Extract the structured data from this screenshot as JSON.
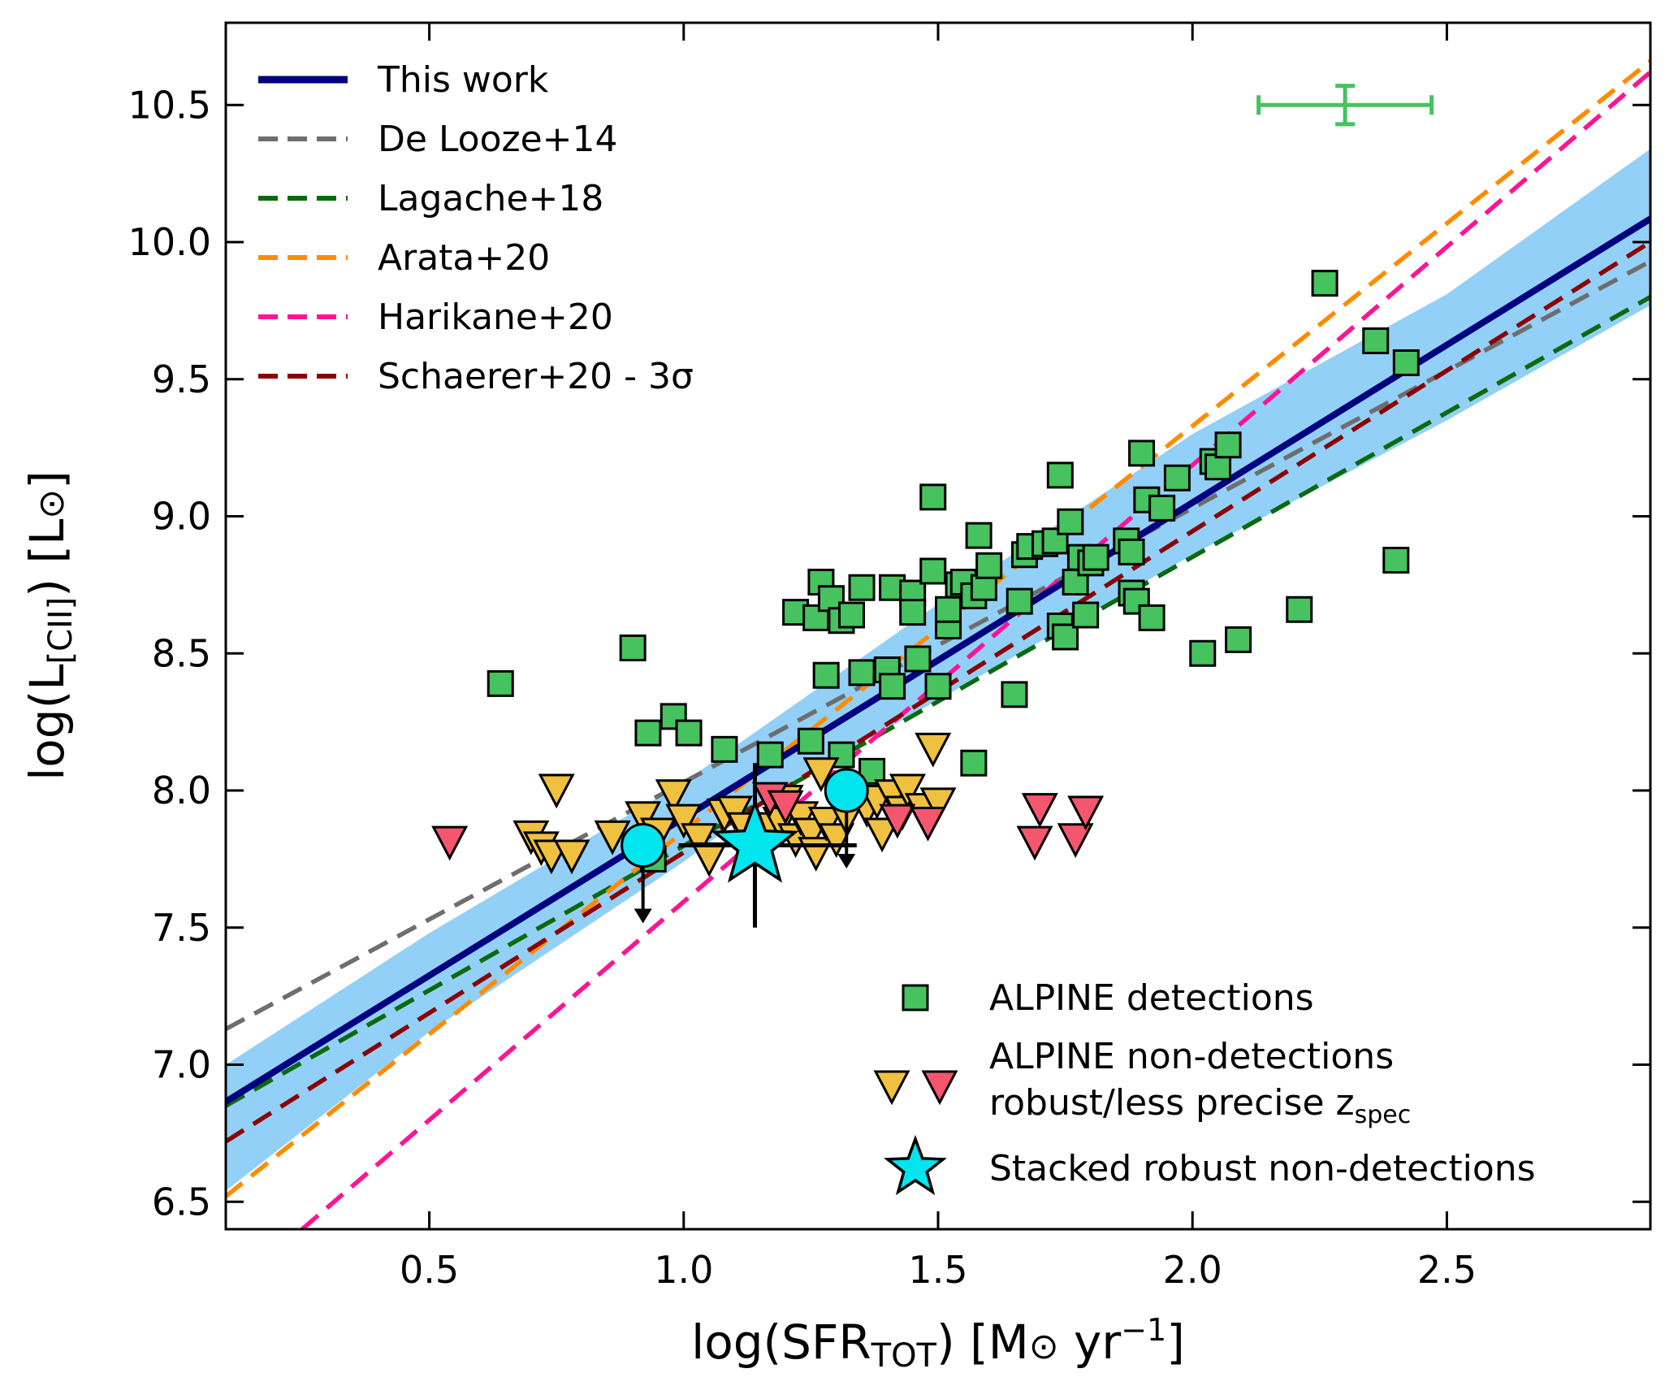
{
  "chart_data": {
    "type": "scatter",
    "xlabel": "log(SFR_TOT) [M⊙ yr⁻¹]",
    "ylabel": "log(L_[CII]) [L⊙]",
    "xlim": [
      0.1,
      2.9
    ],
    "ylim": [
      6.4,
      10.8
    ],
    "xticks": [
      0.5,
      1.0,
      1.5,
      2.0,
      2.5
    ],
    "yticks": [
      6.5,
      7.0,
      7.5,
      8.0,
      8.5,
      9.0,
      9.5,
      10.0,
      10.5
    ],
    "xtick_labels": [
      "0.5",
      "1.0",
      "1.5",
      "2.0",
      "2.5"
    ],
    "ytick_labels": [
      "6.5",
      "7.0",
      "7.5",
      "8.0",
      "8.5",
      "9.0",
      "9.5",
      "10.0",
      "10.5"
    ],
    "grid": false,
    "legend_top_left": {
      "placement": "top-left",
      "entries": [
        {
          "label": "This work",
          "style": "solid",
          "color": "#000080"
        },
        {
          "label": "De Looze+14",
          "style": "dashed",
          "color": "#6e6e6e"
        },
        {
          "label": "Lagache+18",
          "style": "dashed",
          "color": "#0b6a0b"
        },
        {
          "label": "Arata+20",
          "style": "dashed",
          "color": "#ff8c00"
        },
        {
          "label": "Harikane+20",
          "style": "dashed",
          "color": "#ff1493"
        },
        {
          "label": "Schaerer+20 - 3σ",
          "style": "dashed",
          "color": "#8b0000"
        }
      ]
    },
    "legend_bottom_right": {
      "placement": "bottom-right",
      "entries": [
        {
          "label": "ALPINE detections",
          "marker": "square",
          "color": "#46c25e"
        },
        {
          "label": "ALPINE non-detections",
          "marker": "triangle-down",
          "color": "#f0c040"
        },
        {
          "label": "robust/less precise z_spec",
          "marker": "triangle-down",
          "color": "#f4566e"
        },
        {
          "label": "Stacked robust non-detections",
          "marker": "star",
          "color": "#00e5ee"
        }
      ]
    },
    "lines": [
      {
        "name": "This work",
        "color": "#000080",
        "style": "solid",
        "slope": 1.15,
        "intercept": 6.75
      },
      {
        "name": "De Looze+14",
        "color": "#6e6e6e",
        "style": "dashed",
        "x": [
          0.1,
          2.9
        ],
        "y": [
          7.13,
          9.93
        ]
      },
      {
        "name": "Lagache+18",
        "color": "#0b6a0b",
        "style": "dashed",
        "x": [
          0.1,
          2.9
        ],
        "y": [
          6.85,
          9.8
        ]
      },
      {
        "name": "Arata+20",
        "color": "#ff8c00",
        "style": "dashed",
        "x": [
          0.1,
          2.9
        ],
        "y": [
          6.52,
          10.66
        ]
      },
      {
        "name": "Harikane+20",
        "color": "#ff1493",
        "style": "dashed",
        "x": [
          0.25,
          2.9
        ],
        "y": [
          6.4,
          10.62
        ]
      },
      {
        "name": "Schaerer+20 - 3σ",
        "color": "#8b0000",
        "style": "dashed",
        "x": [
          0.1,
          2.9
        ],
        "y": [
          6.72,
          10.0
        ]
      }
    ],
    "confidence_band": {
      "color": "#8dcdf7",
      "x": [
        0.1,
        0.5,
        1.0,
        1.2,
        1.5,
        2.0,
        2.5,
        2.9
      ],
      "lower": [
        6.54,
        7.12,
        7.74,
        8.02,
        8.33,
        8.86,
        9.35,
        9.77
      ],
      "upper": [
        7.0,
        7.48,
        8.03,
        8.29,
        8.68,
        9.3,
        9.81,
        10.34
      ]
    },
    "typical_error": {
      "x": 2.3,
      "y": 10.5,
      "xerr": 0.17,
      "yerr": 0.07,
      "color": "#46c25e"
    },
    "detections": {
      "name": "ALPINE detections",
      "color": "#46c25e",
      "points": [
        [
          0.64,
          8.39
        ],
        [
          0.9,
          8.52
        ],
        [
          0.93,
          8.21
        ],
        [
          0.98,
          8.27
        ],
        [
          1.01,
          8.21
        ],
        [
          1.08,
          8.15
        ],
        [
          1.17,
          8.13
        ],
        [
          1.25,
          8.18
        ],
        [
          1.22,
          8.65
        ],
        [
          1.26,
          8.63
        ],
        [
          1.27,
          8.76
        ],
        [
          1.29,
          8.7
        ],
        [
          1.31,
          8.62
        ],
        [
          1.33,
          8.64
        ],
        [
          1.35,
          8.74
        ],
        [
          1.28,
          8.42
        ],
        [
          1.35,
          8.43
        ],
        [
          1.4,
          8.44
        ],
        [
          1.41,
          8.38
        ],
        [
          1.41,
          8.74
        ],
        [
          1.45,
          8.72
        ],
        [
          1.45,
          8.65
        ],
        [
          1.46,
          8.48
        ],
        [
          1.49,
          8.8
        ],
        [
          1.49,
          9.07
        ],
        [
          1.52,
          8.6
        ],
        [
          1.52,
          8.66
        ],
        [
          1.5,
          8.38
        ],
        [
          1.54,
          8.75
        ],
        [
          1.55,
          8.76
        ],
        [
          1.57,
          8.71
        ],
        [
          1.58,
          8.93
        ],
        [
          1.59,
          8.74
        ],
        [
          1.6,
          8.82
        ],
        [
          1.57,
          8.1
        ],
        [
          1.65,
          8.35
        ],
        [
          1.66,
          8.69
        ],
        [
          1.67,
          8.86
        ],
        [
          1.68,
          8.89
        ],
        [
          1.71,
          8.9
        ],
        [
          1.73,
          8.91
        ],
        [
          1.74,
          9.15
        ],
        [
          1.74,
          8.6
        ],
        [
          1.75,
          8.56
        ],
        [
          1.76,
          8.98
        ],
        [
          1.77,
          8.76
        ],
        [
          1.78,
          8.85
        ],
        [
          1.79,
          8.64
        ],
        [
          1.8,
          8.83
        ],
        [
          1.81,
          8.85
        ],
        [
          1.87,
          8.91
        ],
        [
          1.88,
          8.87
        ],
        [
          1.88,
          8.72
        ],
        [
          1.89,
          8.69
        ],
        [
          1.9,
          9.23
        ],
        [
          1.91,
          9.06
        ],
        [
          1.92,
          8.63
        ],
        [
          1.94,
          9.03
        ],
        [
          1.97,
          9.14
        ],
        [
          2.02,
          8.5
        ],
        [
          2.04,
          9.2
        ],
        [
          2.05,
          9.18
        ],
        [
          2.07,
          9.26
        ],
        [
          2.09,
          8.55
        ],
        [
          2.21,
          8.66
        ],
        [
          2.26,
          9.85
        ],
        [
          2.36,
          9.64
        ],
        [
          2.4,
          8.84
        ],
        [
          2.42,
          9.56
        ],
        [
          0.94,
          7.75
        ],
        [
          1.31,
          8.13
        ],
        [
          1.37,
          8.07
        ]
      ]
    },
    "non_detections_robust": {
      "name": "ALPINE non-detections",
      "color": "#f0c040",
      "points": [
        [
          0.7,
          7.83
        ],
        [
          0.72,
          7.79
        ],
        [
          0.74,
          7.76
        ],
        [
          0.75,
          8.0
        ],
        [
          0.78,
          7.76
        ],
        [
          0.86,
          7.83
        ],
        [
          0.92,
          7.9
        ],
        [
          0.95,
          7.84
        ],
        [
          0.98,
          7.98
        ],
        [
          1.0,
          7.89
        ],
        [
          1.03,
          7.82
        ],
        [
          1.05,
          7.75
        ],
        [
          1.08,
          7.91
        ],
        [
          1.1,
          7.92
        ],
        [
          1.12,
          7.86
        ],
        [
          1.14,
          7.79
        ],
        [
          1.17,
          7.86
        ],
        [
          1.19,
          7.88
        ],
        [
          1.2,
          7.96
        ],
        [
          1.22,
          7.82
        ],
        [
          1.23,
          7.9
        ],
        [
          1.25,
          7.84
        ],
        [
          1.26,
          7.77
        ],
        [
          1.27,
          8.06
        ],
        [
          1.28,
          7.88
        ],
        [
          1.3,
          7.82
        ],
        [
          1.32,
          7.9
        ],
        [
          1.36,
          7.93
        ],
        [
          1.38,
          7.96
        ],
        [
          1.39,
          7.84
        ],
        [
          1.41,
          7.98
        ],
        [
          1.43,
          7.92
        ],
        [
          1.44,
          8.0
        ],
        [
          1.47,
          7.93
        ],
        [
          1.49,
          8.15
        ],
        [
          1.5,
          7.95
        ]
      ]
    },
    "non_detections_less_precise": {
      "name": "robust/less precise z_spec",
      "color": "#f4566e",
      "points": [
        [
          0.54,
          7.81
        ],
        [
          1.17,
          7.97
        ],
        [
          1.2,
          7.94
        ],
        [
          1.42,
          7.89
        ],
        [
          1.48,
          7.88
        ],
        [
          1.69,
          7.81
        ],
        [
          1.7,
          7.93
        ],
        [
          1.77,
          7.82
        ],
        [
          1.79,
          7.92
        ]
      ]
    },
    "stack_circles": {
      "color": "#00e5ee",
      "points": [
        {
          "x": 0.92,
          "y": 7.8,
          "upper_limit": true
        },
        {
          "x": 1.32,
          "y": 8.0,
          "upper_limit": true
        }
      ]
    },
    "stacked_star": {
      "name": "Stacked robust non-detections",
      "color": "#00e5ee",
      "x": 1.14,
      "y": 7.8,
      "xerr_low": 0.15,
      "xerr_high": 0.2,
      "yerr_low": 0.3,
      "yerr_high": 0.3
    }
  }
}
